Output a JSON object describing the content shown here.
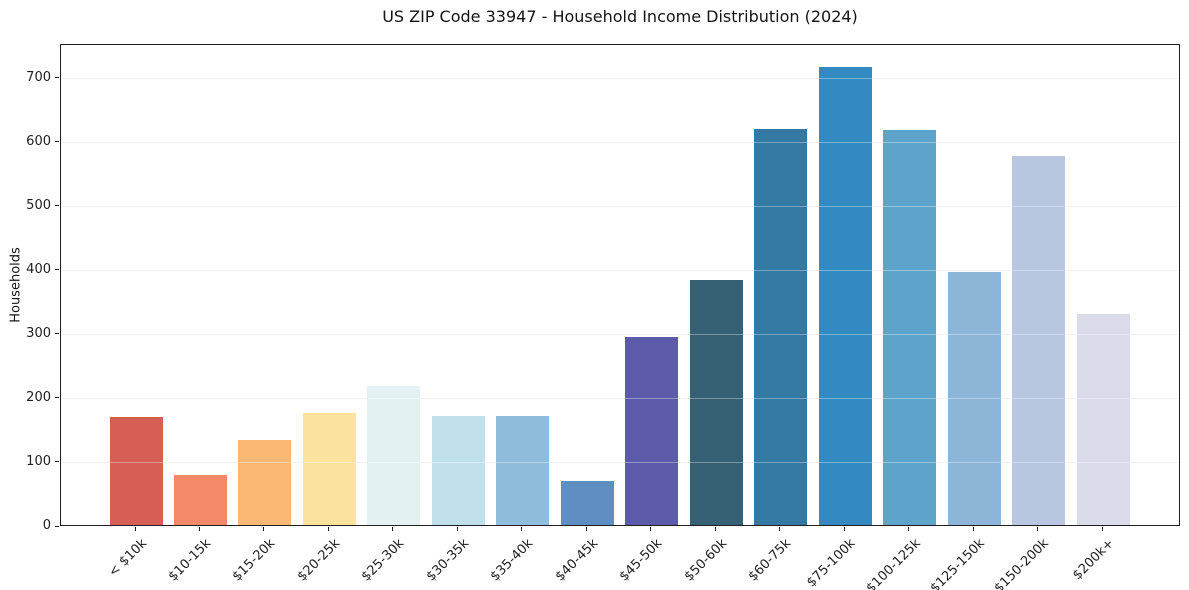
{
  "chart_data": {
    "type": "bar",
    "title": "US ZIP Code 33947 - Household Income Distribution (2024)",
    "xlabel": "",
    "ylabel": "Households",
    "categories": [
      "< $10k",
      "$10-15k",
      "$15-20k",
      "$20-25k",
      "$25-30k",
      "$30-35k",
      "$35-40k",
      "$40-45k",
      "$45-50k",
      "$50-60k",
      "$60-75k",
      "$75-100k",
      "$100-125k",
      "$125-150k",
      "$150-200k",
      "$200k+"
    ],
    "values": [
      169,
      78,
      133,
      175,
      217,
      170,
      170,
      68,
      293,
      382,
      619,
      716,
      617,
      396,
      577,
      330
    ],
    "bar_colors": [
      "#d65f55",
      "#f48a68",
      "#f9b873",
      "#fbe39d",
      "#e4f1f3",
      "#bfdfea",
      "#8fbcda",
      "#5f8ec3",
      "#5c5baa",
      "#366073",
      "#3379a3",
      "#338ac0",
      "#5ea4ca",
      "#8db5d7",
      "#b9c6e0",
      "#d9dbea"
    ],
    "yticks": [
      0,
      100,
      200,
      300,
      400,
      500,
      600,
      700
    ],
    "ylim": [
      0,
      753
    ],
    "grid": "horizontal",
    "legend": "none",
    "x_tick_rotation": 45
  },
  "colors": {
    "background": "#ffffff",
    "grid": "#e9e9e9",
    "spine": "#1f1f1f",
    "text": "#141414"
  }
}
